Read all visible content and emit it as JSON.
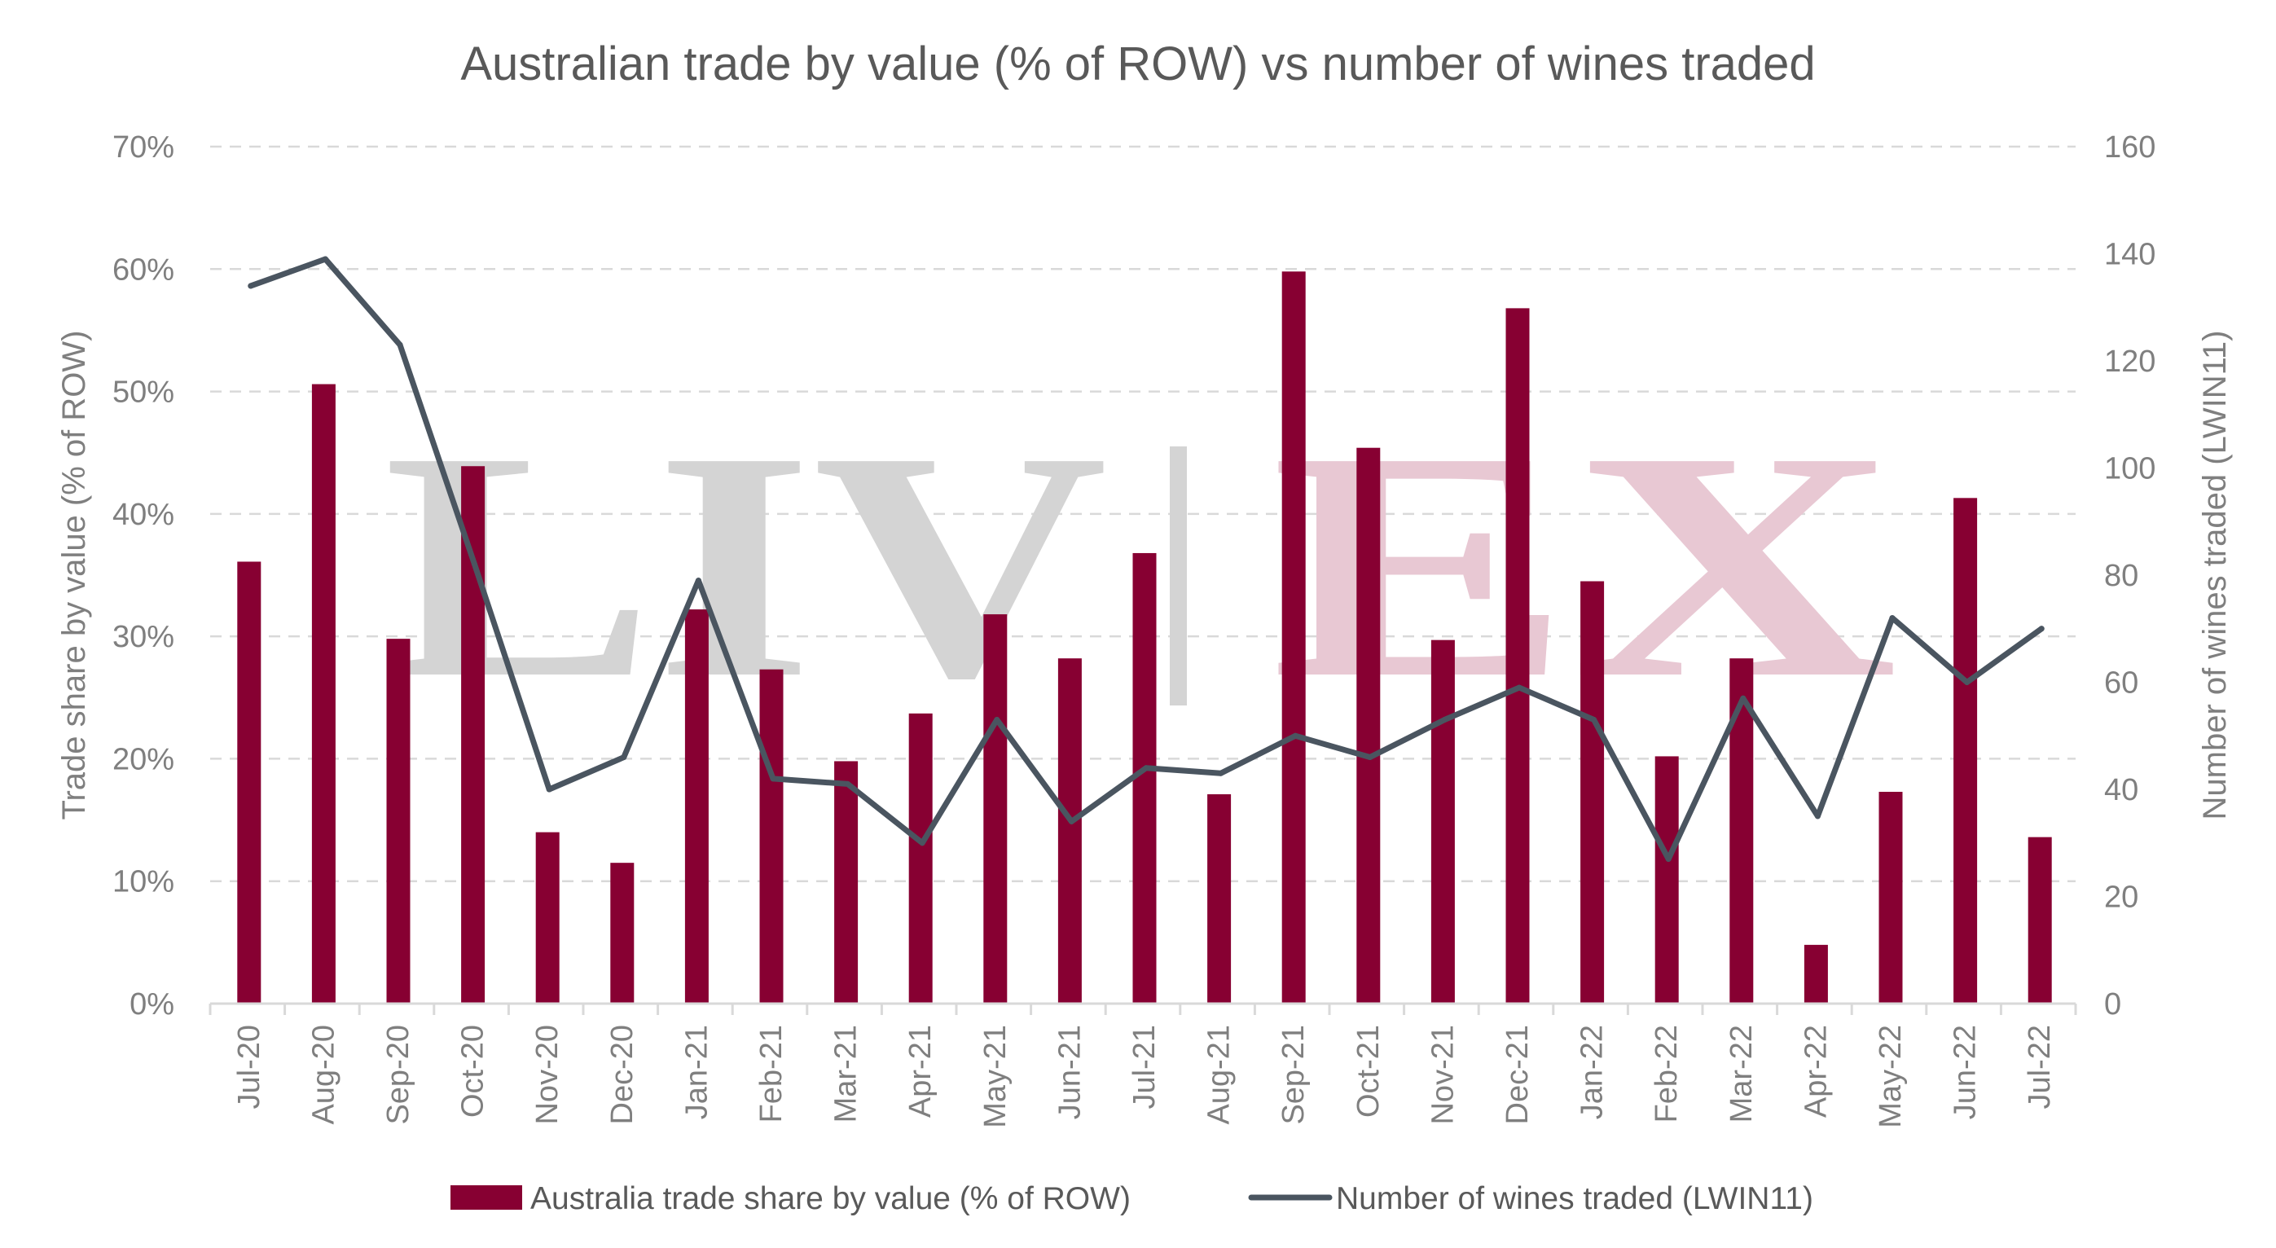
{
  "chart_data": {
    "type": "bar",
    "title": "Australian trade by value (% of ROW) vs number of wines traded",
    "categories": [
      "Jul-20",
      "Aug-20",
      "Sep-20",
      "Oct-20",
      "Nov-20",
      "Dec-20",
      "Jan-21",
      "Feb-21",
      "Mar-21",
      "Apr-21",
      "May-21",
      "Jun-21",
      "Jul-21",
      "Aug-21",
      "Sep-21",
      "Oct-21",
      "Nov-21",
      "Dec-21",
      "Jan-22",
      "Feb-22",
      "Mar-22",
      "Apr-22",
      "May-22",
      "Jun-22",
      "Jul-22"
    ],
    "series": [
      {
        "name": "Australia trade share by value (% of ROW)",
        "type": "bar",
        "axis": "left",
        "color": "#870032",
        "values": [
          36.1,
          50.6,
          29.8,
          43.9,
          14.0,
          11.5,
          32.2,
          27.3,
          19.8,
          23.7,
          31.8,
          28.2,
          36.8,
          17.1,
          59.8,
          45.4,
          29.7,
          56.8,
          34.5,
          20.2,
          28.2,
          4.8,
          17.3,
          41.3,
          13.6
        ]
      },
      {
        "name": "Number of wines traded (LWIN11)",
        "type": "line",
        "axis": "right",
        "color": "#4a5560",
        "values": [
          134,
          139,
          123,
          82,
          40,
          46,
          79,
          42,
          41,
          30,
          53,
          34,
          44,
          43,
          50,
          46,
          53,
          59,
          53,
          27,
          57,
          35,
          72,
          60,
          70
        ]
      }
    ],
    "ylabel": "Trade share by value (% of ROW)",
    "y2label": "Number of wines traded (LWIN11)",
    "ylim": [
      0,
      70
    ],
    "y2lim": [
      0,
      160
    ],
    "yticks": [
      "0%",
      "10%",
      "20%",
      "30%",
      "40%",
      "50%",
      "60%",
      "70%"
    ],
    "y2ticks": [
      "0",
      "20",
      "40",
      "60",
      "80",
      "100",
      "120",
      "140",
      "160"
    ],
    "grid": true,
    "legend_position": "bottom"
  },
  "watermark": {
    "left_text": "LIV",
    "separator": "|",
    "right_text": "EX",
    "left_color": "#d4d4d4",
    "right_color": "#e8c8d3"
  }
}
